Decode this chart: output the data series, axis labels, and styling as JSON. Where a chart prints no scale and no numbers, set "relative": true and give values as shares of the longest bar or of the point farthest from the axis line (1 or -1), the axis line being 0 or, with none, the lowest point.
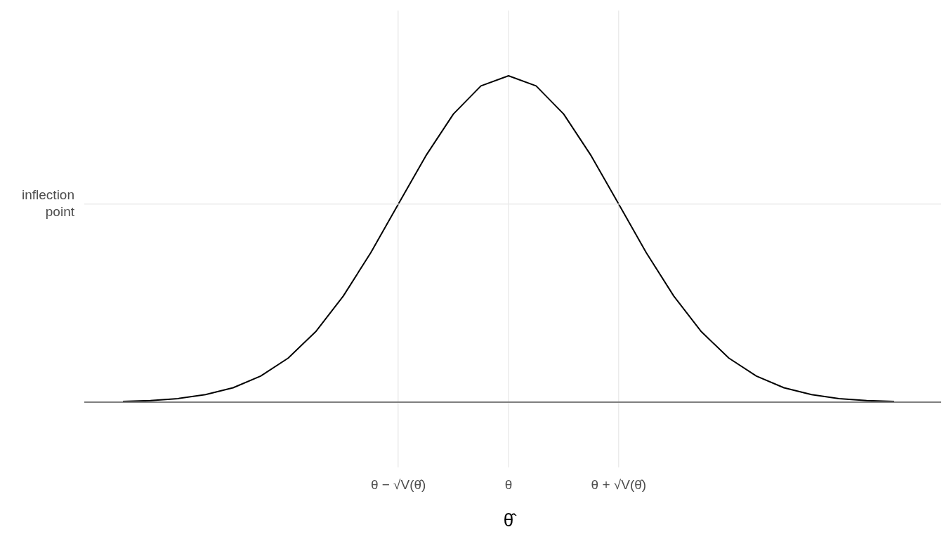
{
  "chart_data": {
    "type": "line",
    "relative": true,
    "xlabel": "θ̂",
    "categories": [
      null,
      null,
      null,
      null,
      null,
      null,
      null,
      null,
      null,
      null,
      "θ − √V(θ̂)",
      null,
      null,
      null,
      "θ",
      null,
      null,
      null,
      "θ + √V(θ̂)",
      null,
      null,
      null,
      null,
      null,
      null,
      null,
      null,
      null,
      null
    ],
    "series": [
      {
        "color": "#000000",
        "values": [
          0.002,
          0.005,
          0.011,
          0.023,
          0.044,
          0.08,
          0.135,
          0.216,
          0.325,
          0.458,
          0.607,
          0.755,
          0.883,
          0.969,
          1,
          0.969,
          0.883,
          0.755,
          0.607,
          0.458,
          0.325,
          0.216,
          0.135,
          0.08,
          0.044,
          0.023,
          0.011,
          0.005,
          0.002
        ]
      }
    ],
    "ref_lines": [
      {
        "axis": "y",
        "value": 0.607,
        "label": "inflection point",
        "color": "#ebebeb"
      },
      {
        "axis": "y",
        "value": 0,
        "color": "#7f7f7f"
      }
    ],
    "grid": "x",
    "legend": false,
    "marker": "none",
    "line_style": "solid"
  }
}
